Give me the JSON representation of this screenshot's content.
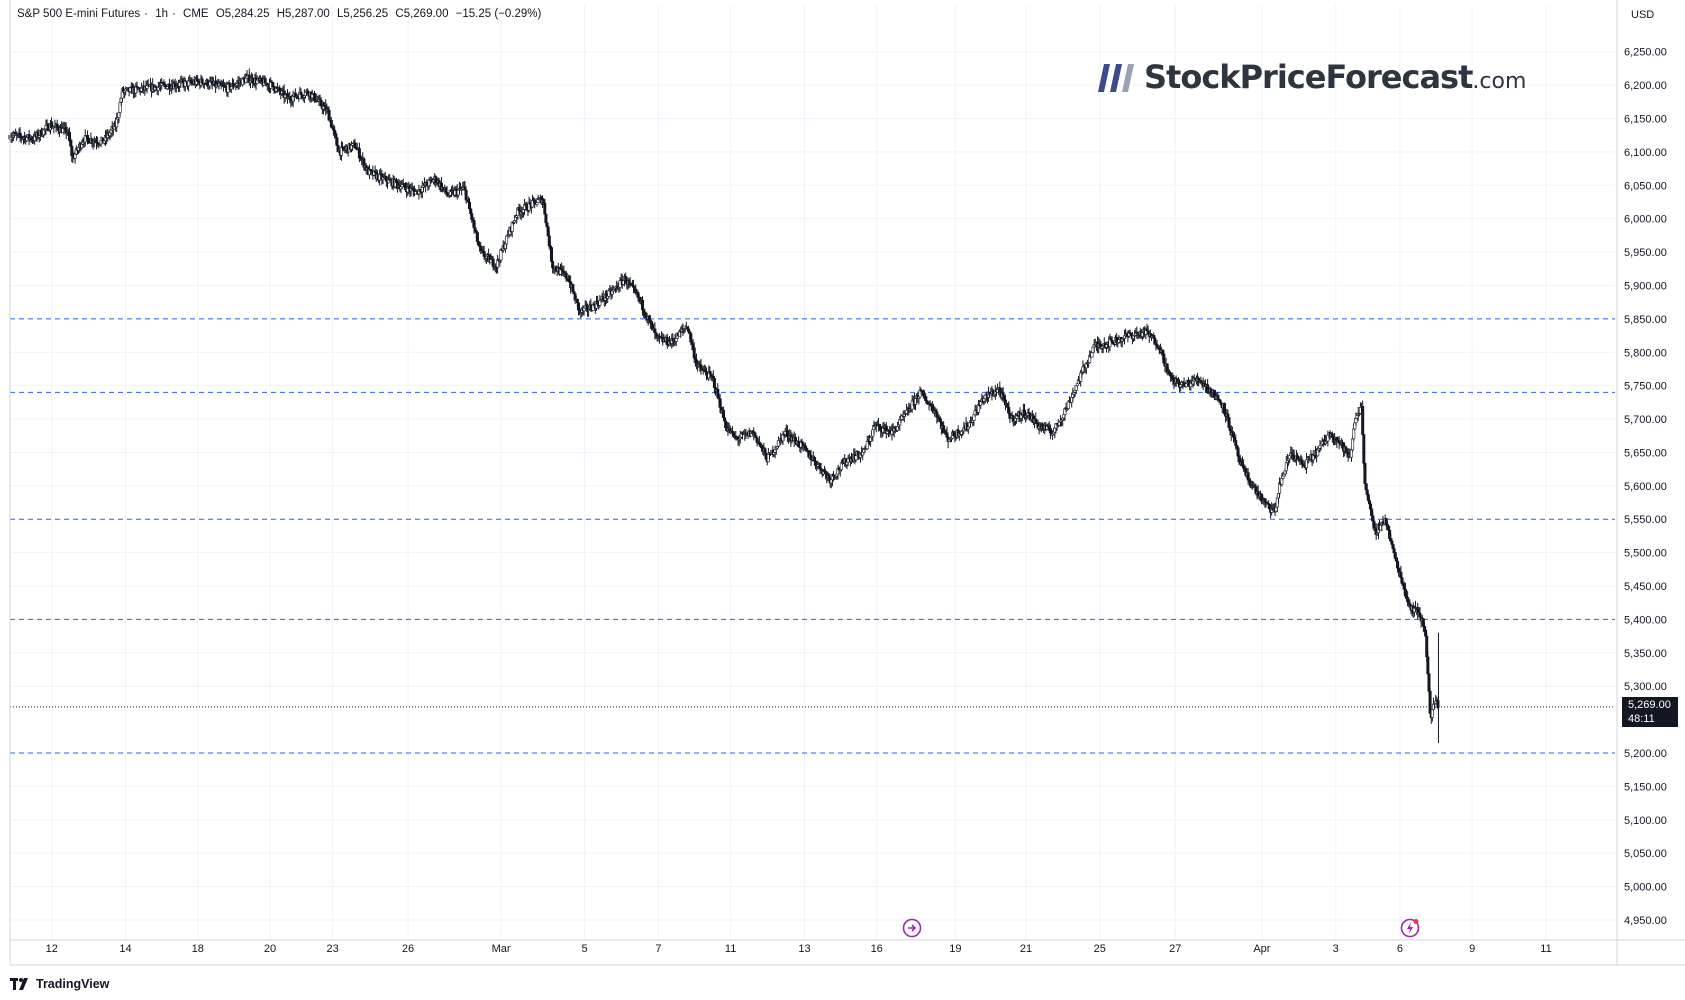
{
  "header": {
    "symbol": "S&P 500 E-mini Futures",
    "interval": "1h",
    "exchange": "CME",
    "open": "O5,284.25",
    "high": "H5,287.00",
    "low": "L5,256.25",
    "close": "C5,269.00",
    "change": "−15.25 (−0.29%)"
  },
  "currency": "USD",
  "last_price": {
    "value": "5,269.00",
    "countdown": "48:11"
  },
  "brand": {
    "name": "StockPriceForecast",
    "tld": ".com"
  },
  "footer": {
    "logo": "TradingView"
  },
  "icons": {
    "event_1": "economic-event-icon",
    "event_2": "lightning-event-icon"
  },
  "colors": {
    "candle": "#131722",
    "level_line": "#2962ff",
    "grid": "#f0f3fa",
    "badge_bg": "#131722"
  },
  "chart_data": {
    "type": "line",
    "title": "S&P 500 E-mini Futures · 1h · CME",
    "ylim": [
      4920,
      6290
    ],
    "y_ticks": [
      6250,
      6200,
      6150,
      6100,
      6050,
      6000,
      5950,
      5900,
      5850,
      5800,
      5750,
      5700,
      5650,
      5600,
      5550,
      5500,
      5450,
      5400,
      5350,
      5300,
      5200,
      5150,
      5100,
      5050,
      5000,
      4950
    ],
    "y_tick_labels": [
      "6,250.00",
      "6,200.00",
      "6,150.00",
      "6,100.00",
      "6,050.00",
      "6,000.00",
      "5,950.00",
      "5,900.00",
      "5,850.00",
      "5,800.00",
      "5,750.00",
      "5,700.00",
      "5,650.00",
      "5,600.00",
      "5,550.00",
      "5,500.00",
      "5,450.00",
      "5,400.00",
      "5,350.00",
      "5,300.00",
      "5,200.00",
      "5,150.00",
      "5,100.00",
      "5,050.00",
      "5,000.00",
      "4,950.00"
    ],
    "x_tick_labels": [
      "12",
      "14",
      "18",
      "20",
      "23",
      "26",
      "Mar",
      "5",
      "7",
      "11",
      "13",
      "16",
      "19",
      "21",
      "25",
      "27",
      "Apr",
      "3",
      "6",
      "9",
      "11"
    ],
    "x_range": [
      0,
      100
    ],
    "x_tick_positions": [
      2.6,
      7.2,
      11.7,
      16.2,
      20.1,
      24.8,
      30.6,
      35.8,
      40.4,
      44.9,
      49.5,
      54.0,
      58.9,
      63.3,
      67.9,
      72.6,
      78.0,
      82.6,
      86.6,
      91.1,
      95.7
    ],
    "price_path": [
      [
        0,
        6125
      ],
      [
        1.5,
        6120
      ],
      [
        2.5,
        6140
      ],
      [
        3.6,
        6130
      ],
      [
        3.9,
        6090
      ],
      [
        4.6,
        6120
      ],
      [
        5.8,
        6115
      ],
      [
        6.6,
        6140
      ],
      [
        7.0,
        6190
      ],
      [
        8.5,
        6195
      ],
      [
        10.0,
        6200
      ],
      [
        12.0,
        6205
      ],
      [
        13.5,
        6195
      ],
      [
        14.8,
        6210
      ],
      [
        16.3,
        6200
      ],
      [
        17.3,
        6180
      ],
      [
        18.6,
        6190
      ],
      [
        19.8,
        6160
      ],
      [
        20.5,
        6100
      ],
      [
        21.5,
        6110
      ],
      [
        22.3,
        6070
      ],
      [
        23.2,
        6060
      ],
      [
        24.3,
        6050
      ],
      [
        25.3,
        6040
      ],
      [
        26.5,
        6060
      ],
      [
        27.3,
        6035
      ],
      [
        28.3,
        6045
      ],
      [
        29.3,
        5950
      ],
      [
        30.3,
        5930
      ],
      [
        31.6,
        6010
      ],
      [
        33.2,
        6030
      ],
      [
        33.8,
        5930
      ],
      [
        34.8,
        5910
      ],
      [
        35.5,
        5860
      ],
      [
        36.4,
        5870
      ],
      [
        37.5,
        5890
      ],
      [
        38.3,
        5910
      ],
      [
        39.2,
        5880
      ],
      [
        40.3,
        5820
      ],
      [
        41.2,
        5815
      ],
      [
        42.2,
        5840
      ],
      [
        42.8,
        5780
      ],
      [
        43.8,
        5760
      ],
      [
        44.6,
        5690
      ],
      [
        45.2,
        5670
      ],
      [
        46.3,
        5680
      ],
      [
        47.2,
        5640
      ],
      [
        48.3,
        5680
      ],
      [
        49.3,
        5660
      ],
      [
        51.1,
        5610
      ],
      [
        52.2,
        5640
      ],
      [
        53.2,
        5650
      ],
      [
        53.9,
        5690
      ],
      [
        55.0,
        5680
      ],
      [
        55.9,
        5710
      ],
      [
        56.7,
        5740
      ],
      [
        57.7,
        5710
      ],
      [
        58.4,
        5670
      ],
      [
        59.7,
        5690
      ],
      [
        60.6,
        5730
      ],
      [
        61.6,
        5745
      ],
      [
        62.4,
        5700
      ],
      [
        63.3,
        5710
      ],
      [
        64.1,
        5690
      ],
      [
        65.0,
        5680
      ],
      [
        65.9,
        5720
      ],
      [
        66.8,
        5770
      ],
      [
        67.6,
        5810
      ],
      [
        68.6,
        5815
      ],
      [
        69.7,
        5825
      ],
      [
        70.8,
        5830
      ],
      [
        71.6,
        5810
      ],
      [
        72.3,
        5760
      ],
      [
        73.1,
        5750
      ],
      [
        74.1,
        5760
      ],
      [
        74.9,
        5740
      ],
      [
        75.6,
        5720
      ],
      [
        76.1,
        5680
      ],
      [
        76.7,
        5630
      ],
      [
        77.4,
        5600
      ],
      [
        78.3,
        5570
      ],
      [
        78.8,
        5560
      ],
      [
        79.1,
        5600
      ],
      [
        79.8,
        5650
      ],
      [
        80.6,
        5630
      ],
      [
        81.4,
        5650
      ],
      [
        82.3,
        5680
      ],
      [
        83.0,
        5660
      ],
      [
        83.5,
        5640
      ],
      [
        83.8,
        5700
      ],
      [
        84.2,
        5720
      ],
      [
        84.4,
        5610
      ],
      [
        85.0,
        5530
      ],
      [
        85.7,
        5550
      ],
      [
        86.2,
        5500
      ],
      [
        86.7,
        5460
      ],
      [
        87.2,
        5420
      ],
      [
        87.8,
        5410
      ],
      [
        88.2,
        5380
      ],
      [
        88.5,
        5250
      ],
      [
        88.8,
        5280
      ],
      [
        89.0,
        5269
      ]
    ],
    "horizontal_levels": [
      5850,
      5740,
      5550,
      5400,
      5200
    ],
    "last_price_line": 5269,
    "grid": true
  }
}
